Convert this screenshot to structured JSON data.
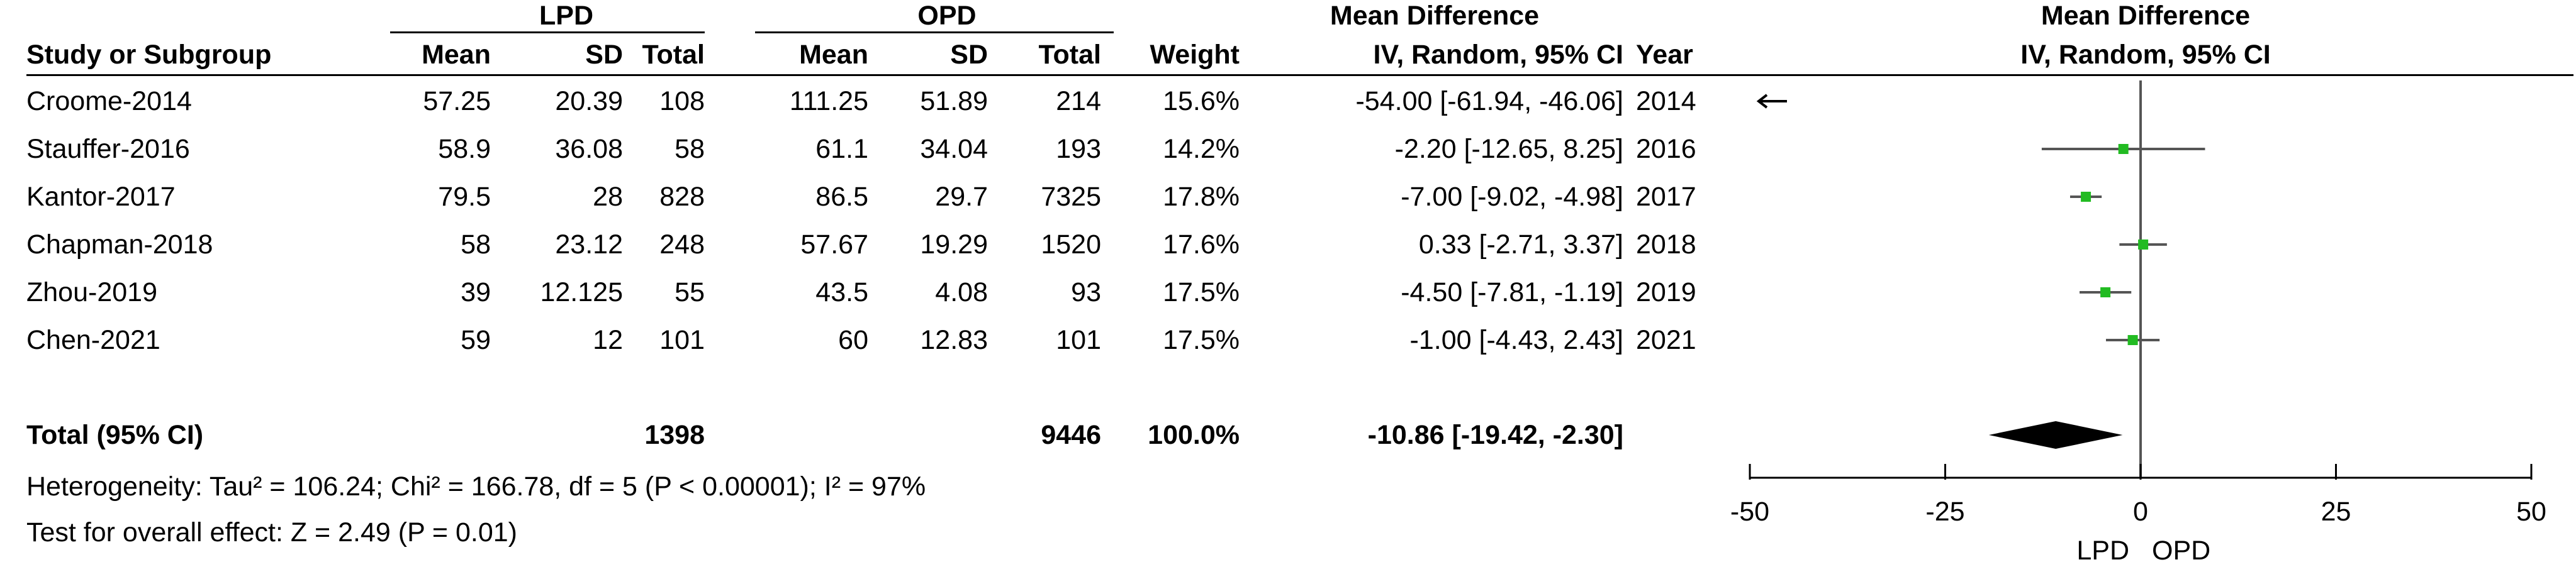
{
  "header": {
    "group1": "LPD",
    "group2": "OPD",
    "md_title_table": "Mean Difference",
    "md_title_plot": "Mean Difference",
    "columns": {
      "study": "Study or Subgroup",
      "mean1": "Mean",
      "sd1": "SD",
      "total1": "Total",
      "mean2": "Mean",
      "sd2": "SD",
      "total2": "Total",
      "weight": "Weight",
      "ci": "IV, Random, 95% CI",
      "year": "Year",
      "plot_ci": "IV, Random, 95% CI"
    }
  },
  "studies": [
    {
      "name": "Croome-2014",
      "mean1": "57.25",
      "sd1": "20.39",
      "total1": "108",
      "mean2": "111.25",
      "sd2": "51.89",
      "total2": "214",
      "weight": "15.6%",
      "ci": "-54.00 [-61.94, -46.06]",
      "year": "2014"
    },
    {
      "name": "Stauffer-2016",
      "mean1": "58.9",
      "sd1": "36.08",
      "total1": "58",
      "mean2": "61.1",
      "sd2": "34.04",
      "total2": "193",
      "weight": "14.2%",
      "ci": "-2.20 [-12.65, 8.25]",
      "year": "2016"
    },
    {
      "name": "Kantor-2017",
      "mean1": "79.5",
      "sd1": "28",
      "total1": "828",
      "mean2": "86.5",
      "sd2": "29.7",
      "total2": "7325",
      "weight": "17.8%",
      "ci": "-7.00 [-9.02, -4.98]",
      "year": "2017"
    },
    {
      "name": "Chapman-2018",
      "mean1": "58",
      "sd1": "23.12",
      "total1": "248",
      "mean2": "57.67",
      "sd2": "19.29",
      "total2": "1520",
      "weight": "17.6%",
      "ci": "0.33 [-2.71, 3.37]",
      "year": "2018"
    },
    {
      "name": "Zhou-2019",
      "mean1": "39",
      "sd1": "12.125",
      "total1": "55",
      "mean2": "43.5",
      "sd2": "4.08",
      "total2": "93",
      "weight": "17.5%",
      "ci": "-4.50 [-7.81, -1.19]",
      "year": "2019"
    },
    {
      "name": "Chen-2021",
      "mean1": "59",
      "sd1": "12",
      "total1": "101",
      "mean2": "60",
      "sd2": "12.83",
      "total2": "101",
      "weight": "17.5%",
      "ci": "-1.00 [-4.43, 2.43]",
      "year": "2021"
    }
  ],
  "total": {
    "label": "Total (95% CI)",
    "total1": "1398",
    "total2": "9446",
    "weight": "100.0%",
    "ci": "-10.86 [-19.42, -2.30]"
  },
  "heterogeneity": "Heterogeneity: Tau² = 106.24; Chi² = 166.78, df = 5 (P < 0.00001); I² = 97%",
  "overall_effect": "Test for overall effect: Z = 2.49 (P = 0.01)",
  "axis_footer": {
    "left": "LPD",
    "right": "OPD"
  },
  "colors": {
    "marker": "#22bb22",
    "diamond": "#000000",
    "line": "#555555"
  },
  "chart_data": {
    "type": "forest",
    "xlim": [
      -50,
      50
    ],
    "xticks": [
      -50,
      -25,
      0,
      25,
      50
    ],
    "xtick_labels": [
      "-50",
      "-25",
      "0",
      "25",
      "50"
    ],
    "series": [
      {
        "name": "Croome-2014",
        "est": -54.0,
        "lo": -61.94,
        "hi": -46.06,
        "weight": 15.6,
        "off_scale": "left"
      },
      {
        "name": "Stauffer-2016",
        "est": -2.2,
        "lo": -12.65,
        "hi": 8.25,
        "weight": 14.2
      },
      {
        "name": "Kantor-2017",
        "est": -7.0,
        "lo": -9.02,
        "hi": -4.98,
        "weight": 17.8
      },
      {
        "name": "Chapman-2018",
        "est": 0.33,
        "lo": -2.71,
        "hi": 3.37,
        "weight": 17.6
      },
      {
        "name": "Zhou-2019",
        "est": -4.5,
        "lo": -7.81,
        "hi": -1.19,
        "weight": 17.5
      },
      {
        "name": "Chen-2021",
        "est": -1.0,
        "lo": -4.43,
        "hi": 2.43,
        "weight": 17.5
      }
    ],
    "pooled": {
      "est": -10.86,
      "lo": -19.42,
      "hi": -2.3
    }
  }
}
